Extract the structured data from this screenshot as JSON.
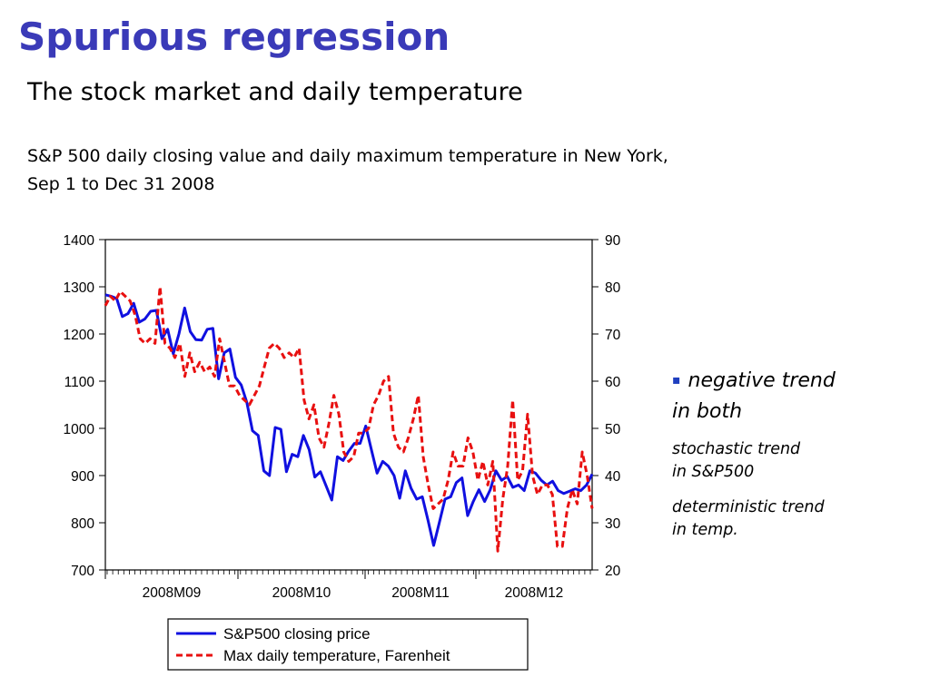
{
  "slide": {
    "title": "Spurious regression",
    "subtitle": "The stock  market and daily temperature",
    "description_line1": "S&P 500 daily closing value and daily maximum temperature in New York,",
    "description_line2": "Sep 1 to Dec 31 2008"
  },
  "side_notes": {
    "bullet": "negative trend\nin both",
    "bullet_marker": "▪",
    "note1": "stochastic trend\nin S&P500",
    "note2": "deterministic trend\nin temp."
  },
  "colors": {
    "title": "#3a3ab8",
    "sp500": "#1010e0",
    "temperature": "#e81010",
    "bullet": "#1f3fbf"
  },
  "chart_data": {
    "type": "line",
    "title": "",
    "x_ticks": [
      "2008M09",
      "2008M10",
      "2008M11",
      "2008M12"
    ],
    "left_axis": {
      "ticks": [
        700,
        800,
        900,
        1000,
        1100,
        1200,
        1300,
        1400
      ],
      "ylim": [
        700,
        1400
      ]
    },
    "right_axis": {
      "ticks": [
        20,
        30,
        40,
        50,
        60,
        70,
        80,
        90
      ],
      "ylim": [
        20,
        90
      ]
    },
    "legend": {
      "placement": "bottom-center"
    },
    "series": [
      {
        "name": "S&P500 closing price",
        "axis": "left",
        "style": "solid",
        "values": [
          1283,
          1280,
          1275,
          1237,
          1243,
          1265,
          1225,
          1232,
          1248,
          1250,
          1190,
          1210,
          1158,
          1200,
          1255,
          1205,
          1188,
          1187,
          1210,
          1212,
          1105,
          1160,
          1168,
          1108,
          1092,
          1055,
          995,
          985,
          910,
          900,
          1002,
          998,
          908,
          945,
          940,
          985,
          955,
          897,
          908,
          878,
          848,
          940,
          932,
          952,
          968,
          968,
          1005,
          955,
          905,
          930,
          920,
          900,
          852,
          910,
          873,
          850,
          855,
          805,
          752,
          800,
          850,
          855,
          885,
          895,
          815,
          845,
          870,
          845,
          870,
          910,
          890,
          898,
          875,
          880,
          868,
          910,
          905,
          890,
          880,
          888,
          868,
          862,
          867,
          872,
          868,
          880,
          903
        ]
      },
      {
        "name": "Max daily temperature, Farenheit",
        "axis": "right",
        "style": "dashed",
        "values": [
          76,
          78,
          77,
          79,
          78,
          77,
          74,
          69,
          68,
          69,
          68,
          80,
          68,
          67,
          65,
          68,
          61,
          66,
          62,
          64,
          62,
          63,
          61,
          69,
          64,
          59,
          59,
          57,
          56,
          55,
          57,
          59,
          63,
          67,
          68,
          67,
          65,
          66,
          65,
          67,
          56,
          52,
          55,
          48,
          46,
          51,
          57,
          53,
          45,
          43,
          44,
          49,
          49,
          50,
          55,
          57,
          60,
          61,
          49,
          46,
          45,
          48,
          52,
          57,
          44,
          38,
          33,
          34,
          35,
          39,
          45,
          42,
          42,
          48,
          45,
          39,
          43,
          38,
          43,
          24,
          35,
          42,
          56,
          39,
          41,
          53,
          40,
          36,
          38,
          38,
          36,
          25,
          25,
          33,
          37,
          34,
          45,
          40,
          33
        ]
      }
    ],
    "xlabel": "",
    "ylabel": ""
  },
  "legend_labels": {
    "sp500": "S&P500 closing price",
    "temperature": "Max daily temperature, Farenheit"
  }
}
